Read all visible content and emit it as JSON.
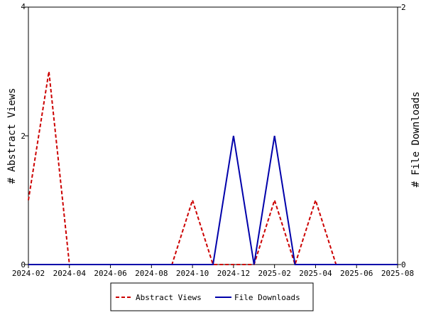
{
  "chart_data": {
    "type": "line",
    "x": [
      "2024-02",
      "2024-03",
      "2024-04",
      "2024-05",
      "2024-06",
      "2024-07",
      "2024-08",
      "2024-09",
      "2024-10",
      "2024-11",
      "2024-12",
      "2025-01",
      "2025-02",
      "2025-03",
      "2025-04",
      "2025-05",
      "2025-06",
      "2025-07",
      "2025-08"
    ],
    "x_tick_labels": [
      "2024-02",
      "2024-04",
      "2024-06",
      "2024-08",
      "2024-10",
      "2024-12",
      "2025-02",
      "2025-04",
      "2025-06",
      "2025-08"
    ],
    "series": [
      {
        "name": "Abstract Views",
        "axis": "left",
        "color": "#cc0000",
        "dash": "dashed",
        "values": [
          1,
          3,
          0,
          0,
          0,
          0,
          0,
          0,
          1,
          0,
          0,
          0,
          1,
          0,
          1,
          0,
          0,
          0,
          0
        ]
      },
      {
        "name": "File Downloads",
        "axis": "right",
        "color": "#0000aa",
        "dash": "solid",
        "values": [
          0,
          0,
          0,
          0,
          0,
          0,
          0,
          0,
          0,
          0,
          1,
          0,
          1,
          0,
          0,
          0,
          0,
          0,
          0
        ]
      }
    ],
    "ylabel_left": "# Abstract Views",
    "ylabel_right": "# File Downloads",
    "ylim_left": [
      0,
      4
    ],
    "ylim_right": [
      0,
      2
    ],
    "yticks_left": [
      0,
      2,
      4
    ],
    "yticks_right": [
      0,
      2
    ],
    "grid": false,
    "legend_position": "bottom"
  }
}
